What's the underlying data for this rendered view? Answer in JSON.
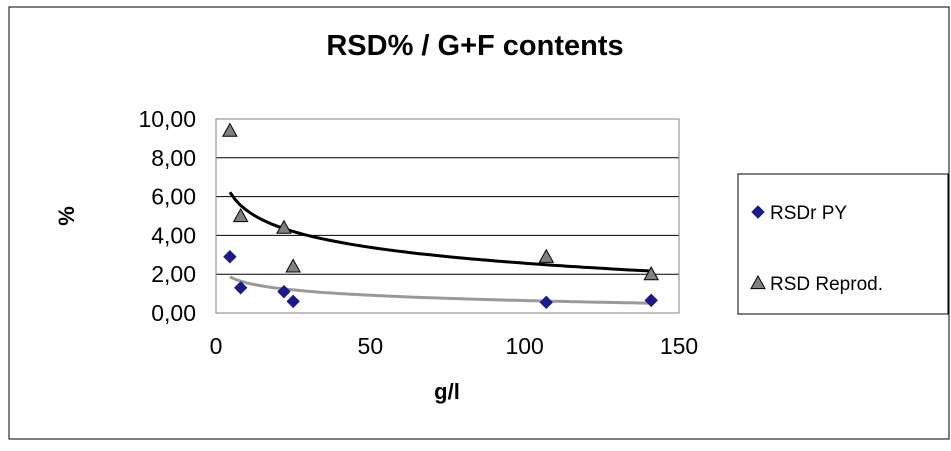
{
  "chart_data": {
    "type": "scatter",
    "title": "RSD% / G+F contents",
    "xlabel": "g/l",
    "ylabel": "%",
    "xlim": [
      0,
      150
    ],
    "ylim": [
      0,
      10
    ],
    "x_ticks": [
      "0",
      "50",
      "100",
      "150"
    ],
    "y_ticks": [
      "0,00",
      "2,00",
      "4,00",
      "6,00",
      "8,00",
      "10,00"
    ],
    "grid": "horizontal",
    "legend_position": "right",
    "series": [
      {
        "name": "RSDr PY",
        "marker": "diamond",
        "color": "#1a1a8c",
        "points": [
          [
            4.5,
            2.9
          ],
          [
            8,
            1.3
          ],
          [
            22,
            1.1
          ],
          [
            25,
            0.6
          ],
          [
            107,
            0.55
          ],
          [
            141,
            0.65
          ]
        ]
      },
      {
        "name": "RSD Reprod.",
        "marker": "triangle",
        "color": "#808080",
        "points": [
          [
            4.5,
            9.4
          ],
          [
            8,
            5.0
          ],
          [
            22,
            4.4
          ],
          [
            25,
            2.4
          ],
          [
            107,
            2.9
          ],
          [
            141,
            2.0
          ]
        ]
      }
    ],
    "trendlines": [
      {
        "type": "logarithmic",
        "color": "#000000",
        "coef": [
          -1.18,
          8.0
        ],
        "x_range": [
          4.5,
          141
        ]
      },
      {
        "type": "logarithmic",
        "color": "#999999",
        "coef": [
          -0.395,
          2.46
        ],
        "x_range": [
          4.5,
          141
        ]
      }
    ]
  }
}
